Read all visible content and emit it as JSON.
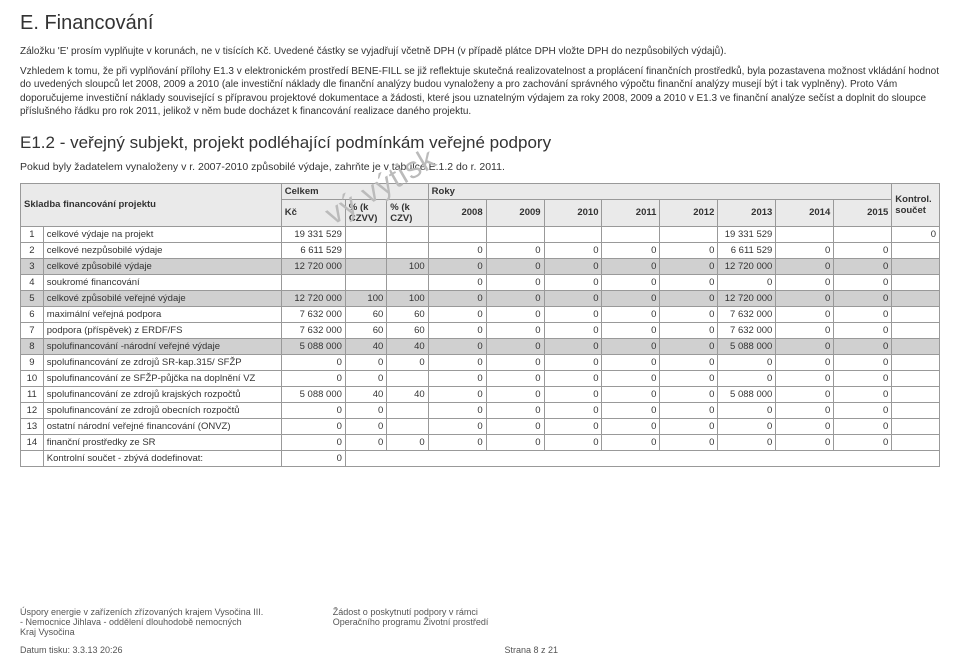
{
  "section_title": "E. Financování",
  "para1": "Záložku 'E' prosím vyplňujte v korunách, ne v tisících Kč. Uvedené částky se vyjadřují včetně DPH (v případě plátce DPH vložte DPH do nezpůsobilých výdajů).",
  "para2": "Vzhledem k tomu, že při vyplňování přílohy E1.3 v elektronickém prostředí BENE-FILL se již reflektuje skutečná realizovatelnost a proplácení finančních prostředků, byla pozastavena možnost vkládání hodnot do uvedených sloupců let 2008, 2009 a 2010 (ale investiční náklady dle finanční analýzy budou vynaloženy a pro zachování správného výpočtu finanční analýzy musejí být i tak vyplněny). Proto Vám doporučujeme investiční náklady související s přípravou projektové dokumentace a žádosti, které jsou uznatelným výdajem za roky 2008, 2009 a 2010 v E1.3 ve finanční analýze sečíst a doplnit do sloupce příslušného řádku pro rok 2011, jelikož v něm bude docházet k financování realizace daného projektu.",
  "subsection_title": "E1.2 - veřejný subjekt, projekt podléhající podmínkám veřejné podpory",
  "sub_note": "Pokud byly žadatelem vynaloženy v r. 2007-2010 způsobilé výdaje, zahrňte je v tabulce E.1.2 do r. 2011.",
  "watermark": "vý výtisk",
  "headers": {
    "skladba": "Skladba financování projektu",
    "celkem": "Celkem",
    "roky": "Roky",
    "kontrol": "Kontrol. součet",
    "kc": "Kč",
    "pct1": "% (k CZVV)",
    "pct2": "% (k CZV)",
    "years": [
      "2008",
      "2009",
      "2010",
      "2011",
      "2012",
      "2013",
      "2014",
      "2015"
    ]
  },
  "rows": [
    {
      "idx": "1",
      "label": "celkové výdaje na projekt",
      "kc": "19 331 529",
      "p1": "",
      "p2": "",
      "y": [
        "",
        "",
        "",
        "",
        "",
        "19 331 529",
        "",
        ""
      ],
      "ctrl": "0",
      "grey": false
    },
    {
      "idx": "2",
      "label": "celkové nezpůsobilé výdaje",
      "kc": "6 611 529",
      "p1": "",
      "p2": "",
      "y": [
        "0",
        "0",
        "0",
        "0",
        "0",
        "6 611 529",
        "0",
        "0"
      ],
      "ctrl": "",
      "grey": false
    },
    {
      "idx": "3",
      "label": "celkové způsobilé výdaje",
      "kc": "12 720 000",
      "p1": "",
      "p2": "100",
      "y": [
        "0",
        "0",
        "0",
        "0",
        "0",
        "12 720 000",
        "0",
        "0"
      ],
      "ctrl": "",
      "grey": true
    },
    {
      "idx": "4",
      "label": "soukromé financování",
      "kc": "",
      "p1": "",
      "p2": "",
      "y": [
        "0",
        "0",
        "0",
        "0",
        "0",
        "0",
        "0",
        "0"
      ],
      "ctrl": "",
      "grey": false
    },
    {
      "idx": "5",
      "label": "celkové způsobilé veřejné výdaje",
      "kc": "12 720 000",
      "p1": "100",
      "p2": "100",
      "y": [
        "0",
        "0",
        "0",
        "0",
        "0",
        "12 720 000",
        "0",
        "0"
      ],
      "ctrl": "",
      "grey": true
    },
    {
      "idx": "6",
      "label": "maximální veřejná podpora",
      "kc": "7 632 000",
      "p1": "60",
      "p2": "60",
      "y": [
        "0",
        "0",
        "0",
        "0",
        "0",
        "7 632 000",
        "0",
        "0"
      ],
      "ctrl": "",
      "grey": false
    },
    {
      "idx": "7",
      "label": "podpora (příspěvek) z ERDF/FS",
      "kc": "7 632 000",
      "p1": "60",
      "p2": "60",
      "y": [
        "0",
        "0",
        "0",
        "0",
        "0",
        "7 632 000",
        "0",
        "0"
      ],
      "ctrl": "",
      "grey": false
    },
    {
      "idx": "8",
      "label": "spolufinancování -národní veřejné výdaje",
      "kc": "5 088 000",
      "p1": "40",
      "p2": "40",
      "y": [
        "0",
        "0",
        "0",
        "0",
        "0",
        "5 088 000",
        "0",
        "0"
      ],
      "ctrl": "",
      "grey": true
    },
    {
      "idx": "9",
      "label": "spolufinancování ze zdrojů SR-kap.315/ SFŽP",
      "kc": "0",
      "p1": "0",
      "p2": "0",
      "y": [
        "0",
        "0",
        "0",
        "0",
        "0",
        "0",
        "0",
        "0"
      ],
      "ctrl": "",
      "grey": false
    },
    {
      "idx": "10",
      "label": "spolufinancování ze SFŽP-půjčka na doplnění VZ",
      "kc": "0",
      "p1": "0",
      "p2": "",
      "y": [
        "0",
        "0",
        "0",
        "0",
        "0",
        "0",
        "0",
        "0"
      ],
      "ctrl": "",
      "grey": false
    },
    {
      "idx": "11",
      "label": "spolufinancování ze zdrojů krajských rozpočtů",
      "kc": "5 088 000",
      "p1": "40",
      "p2": "40",
      "y": [
        "0",
        "0",
        "0",
        "0",
        "0",
        "5 088 000",
        "0",
        "0"
      ],
      "ctrl": "",
      "grey": false
    },
    {
      "idx": "12",
      "label": "spolufinancování ze zdrojů obecních rozpočtů",
      "kc": "0",
      "p1": "0",
      "p2": "",
      "y": [
        "0",
        "0",
        "0",
        "0",
        "0",
        "0",
        "0",
        "0"
      ],
      "ctrl": "",
      "grey": false
    },
    {
      "idx": "13",
      "label": "ostatní národní veřejné financování (ONVZ)",
      "kc": "0",
      "p1": "0",
      "p2": "",
      "y": [
        "0",
        "0",
        "0",
        "0",
        "0",
        "0",
        "0",
        "0"
      ],
      "ctrl": "",
      "grey": false
    },
    {
      "idx": "14",
      "label": "finanční prostředky ze SR",
      "kc": "0",
      "p1": "0",
      "p2": "0",
      "y": [
        "0",
        "0",
        "0",
        "0",
        "0",
        "0",
        "0",
        "0"
      ],
      "ctrl": "",
      "grey": false
    }
  ],
  "footer_row": {
    "label": "Kontrolní součet - zbývá dodefinovat:",
    "val": "0"
  },
  "footer": {
    "left1": "Úspory energie v zařízeních zřízovaných krajem Vysočina III.",
    "left2": "- Nemocnice Jihlava - oddělení dlouhodobě nemocných",
    "left3": "Kraj Vysočina",
    "mid1": "Žádost o poskytnutí podpory v rámci",
    "mid2": "Operačního programu Životní prostředí",
    "date": "Datum tisku: 3.3.13 20:26",
    "page": "Strana 8 z 21"
  }
}
